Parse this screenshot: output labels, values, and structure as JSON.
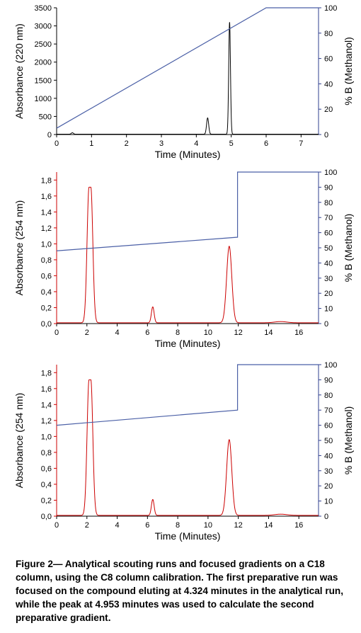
{
  "chart_data": [
    {
      "type": "line",
      "xlabel": "Time (Minutes)",
      "ylabel": "Absorbance (220 nm)",
      "y2label": "% B (Methanol)",
      "xlim": [
        0,
        7.5
      ],
      "ylim": [
        0,
        3500
      ],
      "y2lim": [
        0,
        100
      ],
      "xticks": [
        0,
        1,
        2,
        3,
        4,
        5,
        6,
        7
      ],
      "xtick_labels": [
        "0",
        "1",
        "2",
        "3",
        "4",
        "5",
        "6",
        "7"
      ],
      "yticks": [
        0,
        500,
        1000,
        1500,
        2000,
        2500,
        3000,
        3500
      ],
      "ytick_labels": [
        "0",
        "500",
        "1000",
        "1500",
        "2000",
        "2500",
        "3000",
        "3500"
      ],
      "y2ticks": [
        0,
        20,
        40,
        60,
        80,
        100
      ],
      "y2tick_labels": [
        "0",
        "20",
        "40",
        "60",
        "80",
        "100"
      ],
      "y_color": "#000000",
      "baseline": 10,
      "peaks": [
        {
          "x": 0.45,
          "height": 40,
          "width": 0.03
        },
        {
          "x": 4.324,
          "height": 450,
          "width": 0.03
        },
        {
          "x": 4.953,
          "height": 3100,
          "width": 0.025
        }
      ],
      "series": [
        {
          "axis": "y",
          "color": "#000000",
          "x": [
            0,
            0.45,
            4.324,
            4.953,
            7.5
          ],
          "y": [
            10,
            50,
            460,
            3110,
            10
          ]
        },
        {
          "axis": "y2",
          "color": "#4a5fa6",
          "x": [
            0,
            6,
            7.5
          ],
          "y": [
            5,
            100,
            100
          ]
        }
      ]
    },
    {
      "type": "line",
      "xlabel": "Time (Minutes)",
      "ylabel": "Absorbance (254 nm)",
      "y2label": "% B (Methanol)",
      "xlim": [
        0,
        17.3
      ],
      "ylim": [
        0,
        1.9
      ],
      "y2lim": [
        0,
        100
      ],
      "xticks": [
        0,
        2,
        4,
        6,
        8,
        10,
        12,
        14,
        16
      ],
      "xtick_labels": [
        "0",
        "2",
        "4",
        "6",
        "8",
        "10",
        "12",
        "14",
        "16"
      ],
      "yticks": [
        0,
        0.2,
        0.4,
        0.6,
        0.8,
        1.0,
        1.2,
        1.4,
        1.6,
        1.8
      ],
      "ytick_labels": [
        "0,0",
        "0,2",
        "0,4",
        "0,6",
        "0,8",
        "1,0",
        "1,2",
        "1,4",
        "1,6",
        "1,8"
      ],
      "y2ticks": [
        0,
        10,
        20,
        30,
        40,
        50,
        60,
        70,
        80,
        90,
        100
      ],
      "y2tick_labels": [
        "0",
        "10",
        "20",
        "30",
        "40",
        "50",
        "60",
        "70",
        "80",
        "90",
        "100"
      ],
      "y_color": "#cc0000",
      "baseline": 0.01,
      "peaks": [
        {
          "x": 2.2,
          "height": 1.7,
          "width": 0.13,
          "flat": 0.12
        },
        {
          "x": 6.35,
          "height": 0.2,
          "width": 0.09
        },
        {
          "x": 11.4,
          "height": 0.96,
          "width": 0.17
        },
        {
          "x": 14.8,
          "height": 0.015,
          "width": 0.4
        }
      ],
      "series": [
        {
          "axis": "y",
          "color": "#cc0000",
          "x": [
            0,
            2.2,
            6.35,
            11.4,
            14.8,
            17.3
          ],
          "y": [
            0.01,
            1.71,
            0.21,
            0.97,
            0.025,
            0.01
          ]
        },
        {
          "axis": "y2",
          "color": "#4a5fa6",
          "x": [
            0,
            11.95,
            11.95,
            17.3
          ],
          "y": [
            48,
            57,
            100,
            100
          ]
        }
      ]
    },
    {
      "type": "line",
      "xlabel": "Time (Minutes)",
      "ylabel": "Absorbance (254 nm)",
      "y2label": "% B (Methanol)",
      "xlim": [
        0,
        17.3
      ],
      "ylim": [
        0,
        1.9
      ],
      "y2lim": [
        0,
        100
      ],
      "xticks": [
        0,
        2,
        4,
        6,
        8,
        10,
        12,
        14,
        16
      ],
      "xtick_labels": [
        "0",
        "2",
        "4",
        "6",
        "8",
        "10",
        "12",
        "14",
        "16"
      ],
      "yticks": [
        0,
        0.2,
        0.4,
        0.6,
        0.8,
        1.0,
        1.2,
        1.4,
        1.6,
        1.8
      ],
      "ytick_labels": [
        "0,0",
        "0,2",
        "0,4",
        "0,6",
        "0,8",
        "1,0",
        "1,2",
        "1,4",
        "1,6",
        "1,8"
      ],
      "y2ticks": [
        0,
        10,
        20,
        30,
        40,
        50,
        60,
        70,
        80,
        90,
        100
      ],
      "y2tick_labels": [
        "0",
        "10",
        "20",
        "30",
        "40",
        "50",
        "60",
        "70",
        "80",
        "90",
        "100"
      ],
      "y_color": "#cc0000",
      "baseline": 0.01,
      "peaks": [
        {
          "x": 2.2,
          "height": 1.7,
          "width": 0.13,
          "flat": 0.12
        },
        {
          "x": 6.35,
          "height": 0.2,
          "width": 0.09
        },
        {
          "x": 11.4,
          "height": 0.95,
          "width": 0.17
        },
        {
          "x": 14.8,
          "height": 0.015,
          "width": 0.4
        }
      ],
      "series": [
        {
          "axis": "y",
          "color": "#cc0000",
          "x": [
            0,
            2.2,
            6.35,
            11.4,
            14.8,
            17.3
          ],
          "y": [
            0.01,
            1.71,
            0.21,
            0.96,
            0.025,
            0.01
          ]
        },
        {
          "axis": "y2",
          "color": "#4a5fa6",
          "x": [
            0,
            11.95,
            11.95,
            17.3
          ],
          "y": [
            60,
            70,
            100,
            100
          ]
        }
      ]
    }
  ],
  "caption": "Figure 2— Analytical scouting runs and focused gradients on a C18 column, using the C8 column calibration. The first preparative run was focused on the compound eluting at 4.324 minutes in the analytical run, while the peak at 4.953 minutes was used to calculate the second preparative gradient."
}
